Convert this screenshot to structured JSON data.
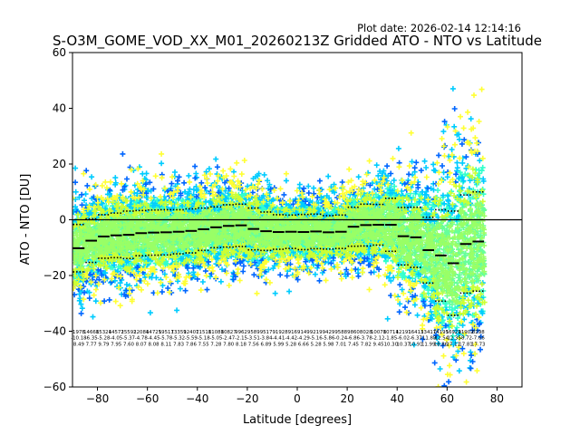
{
  "plot_date": "Plot date: 2026-02-14 12:14:16",
  "chart_data": {
    "type": "scatter",
    "title": "S-O3M_GOME_VOD_XX_M01_20260213Z Gridded ATO - NTO vs Latitude",
    "xlabel": "Latitude [degrees]",
    "ylabel": "ATO - NTO [DU]",
    "xlim": [
      -90,
      90
    ],
    "ylim": [
      -60,
      60
    ],
    "xticks": [
      -80,
      -60,
      -40,
      -20,
      0,
      20,
      40,
      60,
      80
    ],
    "yticks": [
      -60,
      -40,
      -20,
      0,
      20,
      40,
      60
    ],
    "xtick_labels": [
      "−80",
      "−60",
      "−40",
      "−20",
      "0",
      "20",
      "40",
      "60",
      "80"
    ],
    "ytick_labels": [
      "−60",
      "−40",
      "−20",
      "0",
      "20",
      "40",
      "60"
    ],
    "zero_line": 0,
    "grid": false,
    "marker_colors": [
      "#66ff99",
      "#33ffcc",
      "#00ccff",
      "#0066ff",
      "#ffff33",
      "#ccff33",
      "#99ff66"
    ],
    "mean_bins": {
      "lat": [
        -87.5,
        -82.5,
        -77.5,
        -72.5,
        -67.5,
        -62.5,
        -57.5,
        -52.5,
        -47.5,
        -42.5,
        -37.5,
        -32.5,
        -27.5,
        -22.5,
        -17.5,
        -12.5,
        -7.5,
        -2.5,
        2.5,
        7.5,
        12.5,
        17.5,
        22.5,
        27.5,
        32.5,
        37.5,
        42.5,
        47.5,
        52.5,
        57.5,
        62.5,
        67.5,
        72.5
      ],
      "mean": [
        -10.2,
        -7.5,
        -6.0,
        -5.6,
        -5.4,
        -4.8,
        -4.6,
        -4.5,
        -4.3,
        -4.0,
        -3.4,
        -2.7,
        -2.2,
        -2.0,
        -3.3,
        -4.1,
        -4.4,
        -4.3,
        -4.4,
        -4.2,
        -4.5,
        -4.3,
        -2.5,
        -1.9,
        -1.8,
        -1.8,
        -5.9,
        -6.3,
        -10.9,
        -12.8,
        -15.6,
        -8.7,
        -7.8
      ],
      "std": [
        8.5,
        7.8,
        7.8,
        8.0,
        8.5,
        8.1,
        8.1,
        8.1,
        7.9,
        7.9,
        7.6,
        7.3,
        7.6,
        7.6,
        7.5,
        6.9,
        6.2,
        6.0,
        6.3,
        6.2,
        6.0,
        6.0,
        7.0,
        7.5,
        7.3,
        9.5,
        10.3,
        10.8,
        11.8,
        16.4,
        18.7,
        17.6,
        17.8
      ]
    },
    "bin_stats": {
      "counts": [
        "1978",
        "14668",
        "15324",
        "14572",
        "15592",
        "12084",
        "14725",
        "19517",
        "13359",
        "12407",
        "11518",
        "11088",
        "10827",
        "9962",
        "9589",
        "9517",
        "9192",
        "8916",
        "9149",
        "9219",
        "9429",
        "9588",
        "9860",
        "8028",
        "10078",
        "10714",
        "12191",
        "16413",
        "13417",
        "14195",
        "16929",
        "11902",
        "8298"
      ],
      "means": [
        "-10.18",
        "-6.35",
        "-5.28",
        "-4.05",
        "-5.37",
        "-4.78",
        "-4.45",
        "-5.78",
        "-5.32",
        "-5.59",
        "-5.18",
        "-5.05",
        "-2.47",
        "-2.15",
        "-3.51",
        "-3.84",
        "-4.41",
        "-4.42",
        "-4.29",
        "-5.16",
        "-5.86",
        "-0.24",
        "-6.86",
        "-3.78",
        "-2.12",
        "-1.85",
        "-6.02",
        "-6.37",
        "-11.89",
        "-12.54",
        "-12.35",
        "-8.72",
        "-7.66"
      ],
      "stds": [
        "8.49",
        "7.77",
        "9.79",
        "7.95",
        "7.60",
        "8.07",
        "8.08",
        "8.11",
        "7.83",
        "7.86",
        "7.55",
        "7.28",
        "7.80",
        "8.18",
        "7.56",
        "6.89",
        "5.99",
        "5.28",
        "6.66",
        "5.28",
        "5.98",
        "7.01",
        "7.45",
        "7.82",
        "9.45",
        "10.30",
        "10.37",
        "10.91",
        "11.99",
        "18.86",
        "17.11",
        "17.81",
        "17.73"
      ]
    }
  }
}
